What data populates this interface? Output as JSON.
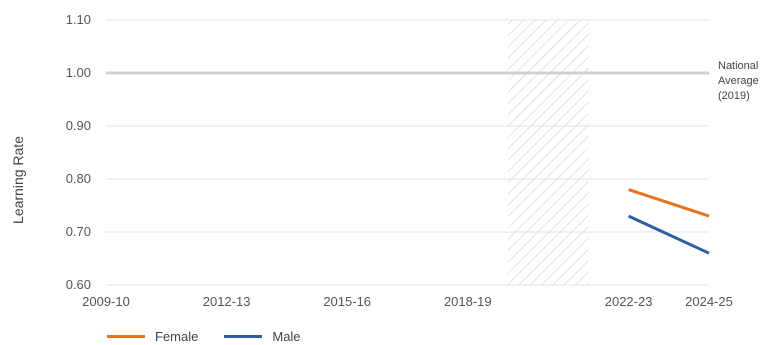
{
  "chart_data": {
    "type": "line",
    "title": "",
    "xlabel": "",
    "ylabel": "Learning Rate",
    "ylim": [
      0.6,
      1.1
    ],
    "yticks": [
      "0.60",
      "0.70",
      "0.80",
      "0.90",
      "1.00",
      "1.10"
    ],
    "x_ticks": [
      {
        "label": "2009-10",
        "year": 2009
      },
      {
        "label": "2012-13",
        "year": 2012
      },
      {
        "label": "2015-16",
        "year": 2015
      },
      {
        "label": "2018-19",
        "year": 2018
      },
      {
        "label": "2022-23",
        "year": 2022
      },
      {
        "label": "2024-25",
        "year": 2024
      }
    ],
    "xlim": [
      2009,
      2024
    ],
    "shaded_period": {
      "from": 2019,
      "to": 2021
    },
    "reference_line": {
      "value": 1.0,
      "label_lines": [
        "National",
        "Average",
        "(2019)"
      ]
    },
    "series": [
      {
        "name": "Female",
        "color": "#e8731a",
        "points": [
          {
            "year": 2022,
            "value": 0.78
          },
          {
            "year": 2024,
            "value": 0.73
          }
        ]
      },
      {
        "name": "Male",
        "color": "#2e5ea8",
        "points": [
          {
            "year": 2022,
            "value": 0.73
          },
          {
            "year": 2024,
            "value": 0.66
          }
        ]
      }
    ],
    "grid": true,
    "legend_position": "bottom-left"
  }
}
